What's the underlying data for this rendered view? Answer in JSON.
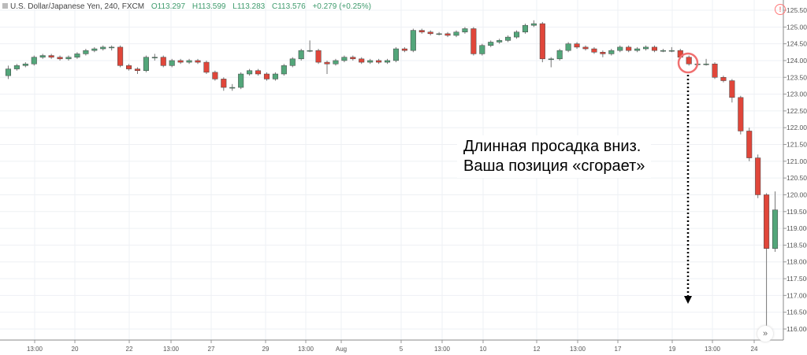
{
  "header": {
    "symbol": "U.S. Dollar/Japanese Yen, 240, FXCM",
    "open": "O113.297",
    "high": "H113.599",
    "low": "L113.283",
    "close": "C113.576",
    "change": "+0.279 (+0.25%)"
  },
  "annotation": {
    "line1": "Длинная просадка вниз.",
    "line2": "Ваша позиция «сгорает»"
  },
  "icons": {
    "warning": "!",
    "scroll": "»"
  },
  "colors": {
    "up": "#53a67a",
    "down": "#e0463a",
    "grid": "#eef0f4",
    "circle": "#f07070"
  },
  "chart_data": {
    "type": "candlestick",
    "ylim": [
      115.8,
      125.7
    ],
    "yticks": [
      "125.500",
      "125.000",
      "124.500",
      "124.000",
      "123.500",
      "123.000",
      "122.500",
      "122.000",
      "121.500",
      "121.000",
      "120.500",
      "120.000",
      "119.500",
      "119.000",
      "118.500",
      "118.000",
      "117.500",
      "117.000",
      "116.500",
      "116.000"
    ],
    "xticks": [
      "13:00",
      "20",
      "22",
      "13:00",
      "27",
      "29",
      "13:00",
      "Aug",
      "5",
      "13:00",
      "10",
      "12",
      "13:00",
      "17",
      "19",
      "13:00",
      "24"
    ],
    "candles": [
      [
        123.55,
        123.85,
        123.45,
        123.75
      ],
      [
        123.75,
        123.9,
        123.7,
        123.85
      ],
      [
        123.85,
        123.95,
        123.8,
        123.9
      ],
      [
        123.9,
        124.15,
        123.85,
        124.1
      ],
      [
        124.1,
        124.2,
        124.05,
        124.15
      ],
      [
        124.15,
        124.2,
        124.05,
        124.1
      ],
      [
        124.1,
        124.15,
        124.0,
        124.05
      ],
      [
        124.05,
        124.15,
        124.0,
        124.1
      ],
      [
        124.1,
        124.25,
        124.05,
        124.2
      ],
      [
        124.2,
        124.35,
        124.15,
        124.3
      ],
      [
        124.3,
        124.4,
        124.25,
        124.35
      ],
      [
        124.35,
        124.45,
        124.3,
        124.4
      ],
      [
        124.4,
        124.45,
        124.3,
        124.4
      ],
      [
        124.4,
        124.45,
        123.8,
        123.85
      ],
      [
        123.85,
        123.9,
        123.7,
        123.75
      ],
      [
        123.75,
        123.8,
        123.6,
        123.7
      ],
      [
        123.7,
        124.15,
        123.65,
        124.1
      ],
      [
        124.1,
        124.2,
        124.0,
        124.1
      ],
      [
        124.1,
        124.15,
        123.8,
        123.85
      ],
      [
        123.85,
        124.05,
        123.8,
        124.0
      ],
      [
        124.0,
        124.05,
        123.9,
        123.95
      ],
      [
        123.95,
        124.05,
        123.9,
        124.0
      ],
      [
        124.0,
        124.05,
        123.9,
        123.95
      ],
      [
        123.95,
        124.0,
        123.6,
        123.65
      ],
      [
        123.65,
        123.7,
        123.4,
        123.45
      ],
      [
        123.45,
        123.5,
        123.1,
        123.2
      ],
      [
        123.2,
        123.3,
        123.1,
        123.2
      ],
      [
        123.2,
        123.65,
        123.15,
        123.6
      ],
      [
        123.6,
        123.75,
        123.55,
        123.7
      ],
      [
        123.7,
        123.75,
        123.55,
        123.6
      ],
      [
        123.6,
        123.65,
        123.4,
        123.45
      ],
      [
        123.45,
        123.65,
        123.4,
        123.6
      ],
      [
        123.6,
        123.9,
        123.55,
        123.85
      ],
      [
        123.85,
        124.1,
        123.8,
        124.05
      ],
      [
        124.05,
        124.35,
        124.0,
        124.3
      ],
      [
        124.3,
        124.6,
        124.25,
        124.3
      ],
      [
        124.3,
        124.35,
        123.9,
        123.95
      ],
      [
        123.95,
        124.0,
        123.6,
        123.9
      ],
      [
        123.9,
        124.05,
        123.85,
        124.0
      ],
      [
        124.0,
        124.15,
        123.95,
        124.1
      ],
      [
        124.1,
        124.15,
        124.0,
        124.05
      ],
      [
        124.05,
        124.1,
        123.9,
        123.95
      ],
      [
        123.95,
        124.05,
        123.9,
        124.0
      ],
      [
        124.0,
        124.05,
        123.9,
        123.95
      ],
      [
        123.95,
        124.05,
        123.9,
        124.0
      ],
      [
        124.0,
        124.4,
        123.95,
        124.35
      ],
      [
        124.35,
        124.4,
        124.25,
        124.3
      ],
      [
        124.3,
        124.95,
        124.25,
        124.9
      ],
      [
        124.9,
        124.95,
        124.8,
        124.85
      ],
      [
        124.85,
        124.9,
        124.75,
        124.8
      ],
      [
        124.8,
        124.85,
        124.75,
        124.8
      ],
      [
        124.8,
        124.85,
        124.7,
        124.75
      ],
      [
        124.75,
        124.9,
        124.7,
        124.85
      ],
      [
        124.85,
        125.0,
        124.8,
        124.95
      ],
      [
        124.95,
        125.0,
        124.15,
        124.2
      ],
      [
        124.2,
        124.5,
        124.15,
        124.45
      ],
      [
        124.45,
        124.6,
        124.4,
        124.55
      ],
      [
        124.55,
        124.65,
        124.5,
        124.6
      ],
      [
        124.6,
        124.75,
        124.55,
        124.7
      ],
      [
        124.7,
        124.9,
        124.65,
        124.85
      ],
      [
        124.85,
        125.1,
        124.8,
        125.05
      ],
      [
        125.05,
        125.2,
        125.0,
        125.1
      ],
      [
        125.1,
        125.15,
        123.95,
        124.05
      ],
      [
        124.05,
        124.1,
        123.8,
        124.05
      ],
      [
        124.05,
        124.35,
        124.0,
        124.3
      ],
      [
        124.3,
        124.55,
        124.25,
        124.5
      ],
      [
        124.5,
        124.55,
        124.35,
        124.4
      ],
      [
        124.4,
        124.45,
        124.3,
        124.35
      ],
      [
        124.35,
        124.4,
        124.2,
        124.25
      ],
      [
        124.25,
        124.3,
        124.1,
        124.2
      ],
      [
        124.2,
        124.35,
        124.15,
        124.3
      ],
      [
        124.3,
        124.45,
        124.25,
        124.4
      ],
      [
        124.4,
        124.45,
        124.25,
        124.3
      ],
      [
        124.3,
        124.4,
        124.25,
        124.35
      ],
      [
        124.35,
        124.45,
        124.3,
        124.4
      ],
      [
        124.4,
        124.45,
        124.25,
        124.3
      ],
      [
        124.3,
        124.35,
        124.25,
        124.3
      ],
      [
        124.3,
        124.4,
        124.25,
        124.3
      ],
      [
        124.3,
        124.35,
        124.05,
        124.1
      ],
      [
        124.1,
        124.15,
        123.85,
        123.9
      ],
      [
        123.9,
        124.0,
        123.85,
        123.9
      ],
      [
        123.9,
        124.05,
        123.85,
        123.9
      ],
      [
        123.9,
        123.95,
        123.45,
        123.5
      ],
      [
        123.5,
        123.55,
        123.35,
        123.4
      ],
      [
        123.4,
        123.45,
        122.75,
        122.9
      ],
      [
        122.9,
        122.95,
        121.8,
        121.9
      ],
      [
        121.9,
        122.0,
        121.0,
        121.1
      ],
      [
        121.1,
        121.2,
        119.9,
        120.0
      ],
      [
        120.0,
        120.05,
        116.1,
        118.4
      ],
      [
        118.4,
        120.1,
        118.3,
        119.55
      ]
    ]
  }
}
